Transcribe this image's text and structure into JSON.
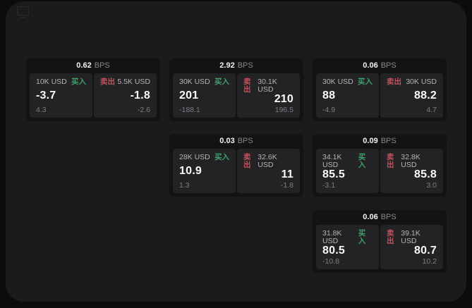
{
  "app": {
    "background": "#0c0c0c",
    "panel_background": "#1b1b1d",
    "card_background": "#131315",
    "tile_background": "#232326",
    "buy_color": "#3fa068",
    "sell_color": "#c4525e"
  },
  "labels": {
    "bps_unit": "BPS",
    "buy": "买入",
    "sell": "卖出"
  },
  "cards": [
    {
      "row": 1,
      "col": 1,
      "bps": "0.62",
      "buy": {
        "size": "10K USD",
        "value": "-3.7",
        "sub": "4.3"
      },
      "sell": {
        "size": "5.5K USD",
        "value": "-1.8",
        "sub": "-2.6"
      }
    },
    {
      "row": 1,
      "col": 2,
      "bps": "2.92",
      "buy": {
        "size": "30K USD",
        "value": "201",
        "sub": "-188.1"
      },
      "sell": {
        "size": "30.1K USD",
        "value": "210",
        "sub": "196.5"
      }
    },
    {
      "row": 1,
      "col": 3,
      "bps": "0.06",
      "buy": {
        "size": "30K USD",
        "value": "88",
        "sub": "-4.9"
      },
      "sell": {
        "size": "30K USD",
        "value": "88.2",
        "sub": "4.7"
      }
    },
    {
      "row": 2,
      "col": 2,
      "bps": "0.03",
      "buy": {
        "size": "28K USD",
        "value": "10.9",
        "sub": "1.3"
      },
      "sell": {
        "size": "32.6K USD",
        "value": "11",
        "sub": "-1.8"
      }
    },
    {
      "row": 2,
      "col": 3,
      "bps": "0.09",
      "buy": {
        "size": "34.1K USD",
        "value": "85.5",
        "sub": "-3.1"
      },
      "sell": {
        "size": "32.8K USD",
        "value": "85.8",
        "sub": "3.0"
      }
    },
    {
      "row": 3,
      "col": 3,
      "bps": "0.06",
      "buy": {
        "size": "31.8K USD",
        "value": "80.5",
        "sub": "-10.8"
      },
      "sell": {
        "size": "39.1K USD",
        "value": "80.7",
        "sub": "10.2"
      }
    }
  ]
}
